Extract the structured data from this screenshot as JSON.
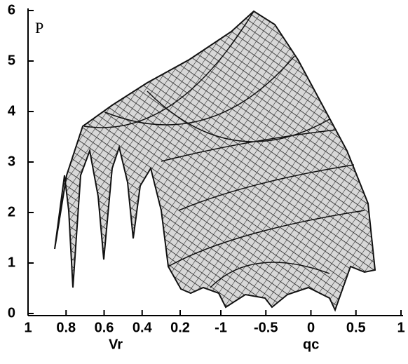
{
  "chart_data": {
    "type": "surface",
    "ylabel": "P",
    "ylim": [
      0,
      6
    ],
    "yticks": [
      0,
      1,
      2,
      3,
      4,
      5,
      6
    ],
    "xlabel": "Vr",
    "xlim": [
      1,
      0.2
    ],
    "xticks": [
      1,
      0.8,
      0.6,
      0.4,
      0.2
    ],
    "x2label": "qc",
    "x2lim": [
      -1,
      1
    ],
    "x2ticks": [
      -1,
      -0.5,
      0,
      0.5,
      1
    ],
    "color": "#555555"
  }
}
